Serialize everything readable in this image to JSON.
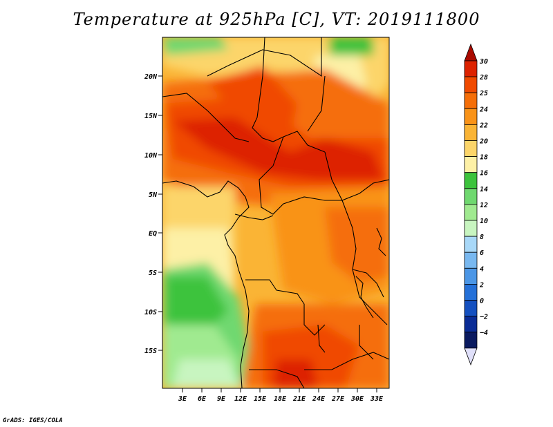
{
  "title": "Temperature at 925hPa [C], VT: 2019111800",
  "credit": "GrADS: IGES/COLA",
  "lat_ticks": [
    "20N",
    "15N",
    "10N",
    "5N",
    "EQ",
    "5S",
    "10S",
    "15S"
  ],
  "lon_ticks": [
    "3E",
    "6E",
    "9E",
    "12E",
    "15E",
    "18E",
    "21E",
    "24E",
    "27E",
    "30E",
    "33E"
  ],
  "colorbar": {
    "labels": [
      "30",
      "28",
      "25",
      "24",
      "22",
      "20",
      "18",
      "16",
      "14",
      "12",
      "10",
      "8",
      "6",
      "4",
      "2",
      "0",
      "−2",
      "−4"
    ],
    "colors": [
      "#dd2200",
      "#f04a00",
      "#f56e08",
      "#f99318",
      "#fab435",
      "#fcd56a",
      "#fdf0a6",
      "#3cc33c",
      "#6fd86f",
      "#a0ea90",
      "#c8f5c0",
      "#a8d8f8",
      "#78b8f0",
      "#4b96e6",
      "#2470d8",
      "#1450c0",
      "#0a2c96",
      "#0a1a60"
    ],
    "top_arrow_color": "#aa0a00",
    "bottom_arrow_color": "#e0e0fa"
  }
}
